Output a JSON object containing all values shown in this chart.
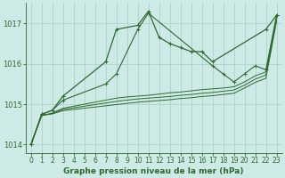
{
  "background_color": "#ceeae7",
  "grid_color": "#aad4cc",
  "line_color": "#2d6a2d",
  "title": "Graphe pression niveau de la mer (hPa)",
  "ylim": [
    1013.8,
    1017.5
  ],
  "yticks": [
    1014,
    1015,
    1016,
    1017
  ],
  "xticks": [
    0,
    1,
    2,
    3,
    4,
    5,
    6,
    7,
    8,
    9,
    10,
    11,
    12,
    13,
    14,
    15,
    16,
    17,
    18,
    19,
    20,
    21,
    22,
    23
  ],
  "line1_x": [
    0,
    1,
    2,
    3,
    7,
    8,
    10,
    11,
    12,
    13,
    14,
    15,
    16,
    17,
    22,
    23
  ],
  "line1_y": [
    1014.0,
    1014.75,
    1014.85,
    1015.2,
    1016.05,
    1016.85,
    1016.95,
    1017.3,
    1016.65,
    1016.5,
    1016.4,
    1016.3,
    1016.3,
    1016.05,
    1016.85,
    1017.2
  ],
  "line2_x": [
    0,
    1,
    2,
    3,
    7,
    8,
    10,
    11,
    17,
    18,
    19,
    20,
    21,
    22,
    23
  ],
  "line2_y": [
    1014.0,
    1014.75,
    1014.85,
    1015.1,
    1015.5,
    1015.75,
    1016.85,
    1017.25,
    1015.95,
    1015.75,
    1015.55,
    1015.75,
    1015.95,
    1015.85,
    1017.2
  ],
  "line3_x": [
    0,
    1,
    2,
    3,
    4,
    5,
    6,
    7,
    8,
    9,
    10,
    11,
    12,
    13,
    14,
    15,
    16,
    17,
    18,
    19,
    20,
    21,
    22,
    23
  ],
  "line3_y": [
    1014.0,
    1014.72,
    1014.78,
    1014.9,
    1014.95,
    1015.0,
    1015.05,
    1015.1,
    1015.15,
    1015.18,
    1015.2,
    1015.22,
    1015.25,
    1015.28,
    1015.3,
    1015.33,
    1015.36,
    1015.38,
    1015.4,
    1015.43,
    1015.55,
    1015.7,
    1015.8,
    1017.15
  ],
  "line4_x": [
    0,
    1,
    2,
    3,
    4,
    5,
    6,
    7,
    8,
    9,
    10,
    11,
    12,
    13,
    14,
    15,
    16,
    17,
    18,
    19,
    20,
    21,
    22,
    23
  ],
  "line4_y": [
    1014.0,
    1014.72,
    1014.77,
    1014.87,
    1014.91,
    1014.95,
    1014.99,
    1015.03,
    1015.07,
    1015.1,
    1015.13,
    1015.15,
    1015.17,
    1015.19,
    1015.22,
    1015.24,
    1015.27,
    1015.29,
    1015.32,
    1015.35,
    1015.47,
    1015.62,
    1015.72,
    1017.1
  ],
  "line5_x": [
    0,
    1,
    2,
    3,
    4,
    5,
    6,
    7,
    8,
    9,
    10,
    11,
    12,
    13,
    14,
    15,
    16,
    17,
    18,
    19,
    20,
    21,
    22,
    23
  ],
  "line5_y": [
    1014.0,
    1014.72,
    1014.76,
    1014.84,
    1014.87,
    1014.9,
    1014.93,
    1014.96,
    1014.99,
    1015.02,
    1015.05,
    1015.07,
    1015.09,
    1015.11,
    1015.14,
    1015.16,
    1015.19,
    1015.21,
    1015.24,
    1015.27,
    1015.4,
    1015.54,
    1015.64,
    1017.05
  ]
}
